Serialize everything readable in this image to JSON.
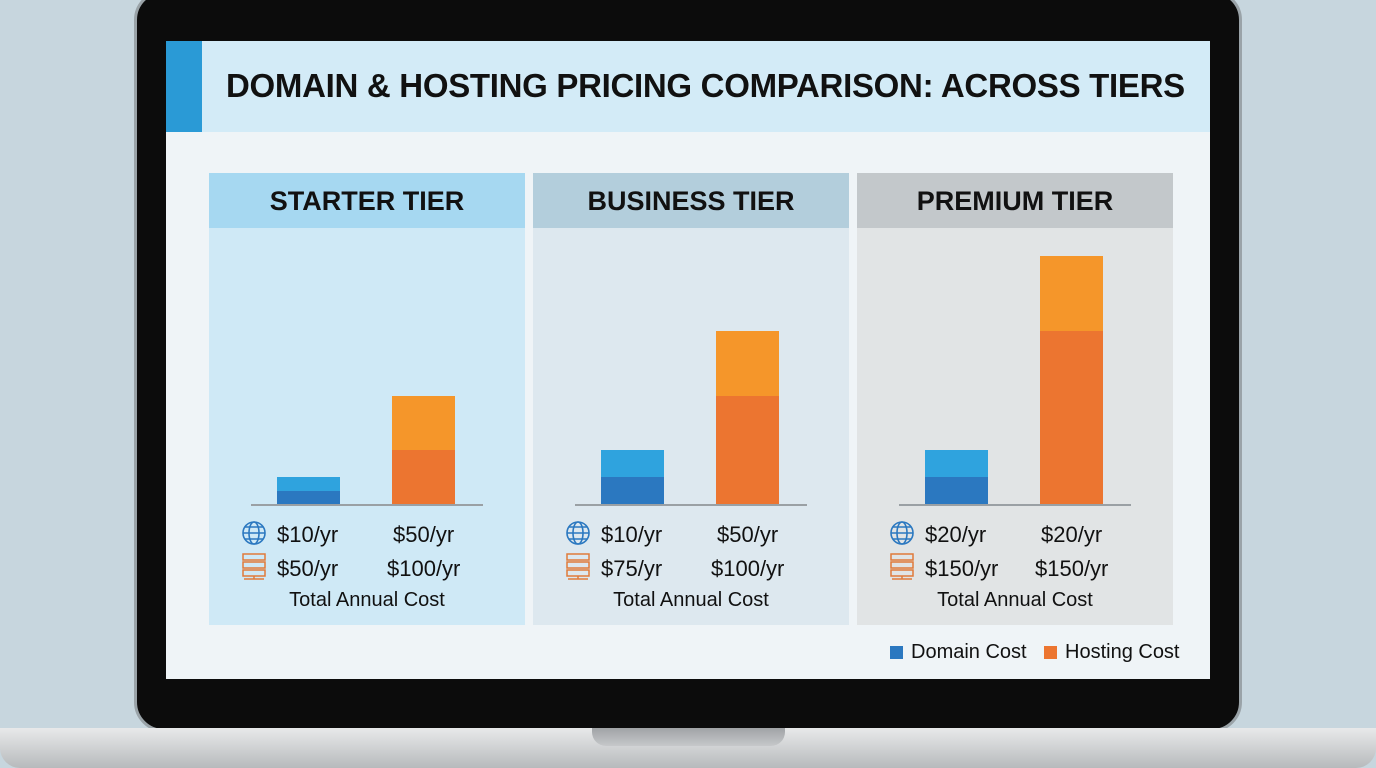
{
  "title": "DOMAIN & HOSTING PRICING COMPARISON: ACROSS TIERS",
  "colors": {
    "domain_dark": "#2b78c0",
    "domain_light": "#2fa3de",
    "hosting_dark": "#ec7530",
    "hosting_light": "#f5962a",
    "accent": "#2a9ad6"
  },
  "chart_data": {
    "type": "bar",
    "stacked": true,
    "legend": {
      "position": "bottom-right",
      "entries": [
        "Domain Cost",
        "Hosting Cost"
      ]
    },
    "footer_label": "Total Annual Cost",
    "tiers": [
      {
        "name": "STARTER TIER",
        "header_color": "#a6d8f1",
        "body_color": "#cfe9f6",
        "domain_segments": [
          5,
          5
        ],
        "hosting_segments": [
          20,
          20
        ],
        "domain_labels": [
          "$10/yr",
          "$50/yr"
        ],
        "hosting_labels": [
          "$50/yr",
          "$100/yr"
        ]
      },
      {
        "name": "BUSINESS TIER",
        "header_color": "#b3cedc",
        "body_color": "#dde8ef",
        "domain_segments": [
          10,
          10
        ],
        "hosting_segments": [
          40,
          24
        ],
        "domain_labels": [
          "$10/yr",
          "$50/yr"
        ],
        "hosting_labels": [
          "$75/yr",
          "$100/yr"
        ]
      },
      {
        "name": "PREMIUM TIER",
        "header_color": "#c3c8cb",
        "body_color": "#e1e4e5",
        "domain_segments": [
          10,
          10
        ],
        "hosting_segments": [
          64,
          28
        ],
        "domain_labels": [
          "$20/yr",
          "$20/yr"
        ],
        "hosting_labels": [
          "$150/yr",
          "$150/yr"
        ]
      }
    ]
  }
}
